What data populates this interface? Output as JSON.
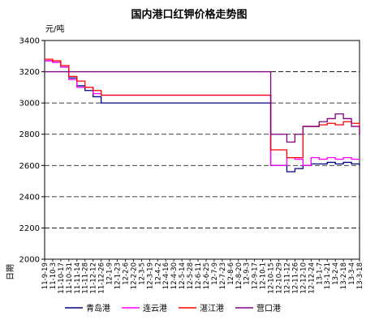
{
  "chart_data": {
    "type": "line",
    "title": "国内港口红钾价格走势图",
    "ylabel": "元/吨",
    "xlabel": "日期",
    "ylim": [
      2000,
      3400
    ],
    "yticks": [
      2000,
      2200,
      2400,
      2600,
      2800,
      3000,
      3200,
      3400
    ],
    "grid": true,
    "legend_position": "bottom",
    "x": [
      "11-9-19",
      "11-10-3",
      "11-10-17",
      "11-10-31",
      "11-11-14",
      "11-11-28",
      "11-12-12",
      "11-12-26",
      "12-1-9",
      "12-1-23",
      "12-2-6",
      "12-2-20",
      "12-3-5",
      "12-3-19",
      "12-4-2",
      "12-4-16",
      "12-4-30",
      "12-5-14",
      "12-5-28",
      "12-6-11",
      "12-6-25",
      "12-7-9",
      "12-7-23",
      "12-8-6",
      "12-8-20",
      "12-9-3",
      "12-9-17",
      "12-10-1",
      "12-10-15",
      "12-10-29",
      "12-11-12",
      "12-11-26",
      "12-12-10",
      "12-12-24",
      "13-1-7",
      "13-1-21",
      "13-2-4",
      "13-2-18",
      "13-3-4",
      "13-3-18"
    ],
    "series": [
      {
        "name": "青岛港",
        "color": "#000080",
        "values": [
          3270,
          3260,
          3230,
          3160,
          3110,
          3080,
          3040,
          3000,
          3000,
          3000,
          3000,
          3000,
          3000,
          3000,
          3000,
          3000,
          3000,
          3000,
          3000,
          3000,
          3000,
          3000,
          3000,
          3000,
          3000,
          3000,
          3000,
          3000,
          2600,
          2600,
          2560,
          2580,
          2600,
          2610,
          2610,
          2620,
          2610,
          2620,
          2610,
          2600
        ]
      },
      {
        "name": "连云港",
        "color": "#ff00ff",
        "values": [
          3270,
          3260,
          3230,
          3150,
          3100,
          3100,
          3060,
          3050,
          3050,
          3050,
          3050,
          3050,
          3050,
          3050,
          3050,
          3050,
          3050,
          3050,
          3050,
          3050,
          3050,
          3050,
          3050,
          3050,
          3050,
          3050,
          3050,
          3050,
          2600,
          2600,
          2650,
          2640,
          2600,
          2650,
          2640,
          2650,
          2640,
          2650,
          2640,
          2640
        ]
      },
      {
        "name": "湛江港",
        "color": "#ff0000",
        "values": [
          3280,
          3270,
          3240,
          3170,
          3140,
          3100,
          3080,
          3050,
          3050,
          3050,
          3050,
          3050,
          3050,
          3050,
          3050,
          3050,
          3050,
          3050,
          3050,
          3050,
          3050,
          3050,
          3050,
          3050,
          3050,
          3050,
          3050,
          3050,
          2700,
          2700,
          2650,
          2650,
          2850,
          2850,
          2860,
          2870,
          2860,
          2880,
          2870,
          2800
        ]
      },
      {
        "name": "营口港",
        "color": "#800080",
        "values": [
          3200,
          3200,
          3200,
          3200,
          3200,
          3200,
          3200,
          3200,
          3200,
          3200,
          3200,
          3200,
          3200,
          3200,
          3200,
          3200,
          3200,
          3200,
          3200,
          3200,
          3200,
          3200,
          3200,
          3200,
          3200,
          3200,
          3200,
          3200,
          2800,
          2800,
          2750,
          2800,
          2850,
          2850,
          2880,
          2900,
          2930,
          2900,
          2850,
          2800
        ]
      }
    ]
  }
}
